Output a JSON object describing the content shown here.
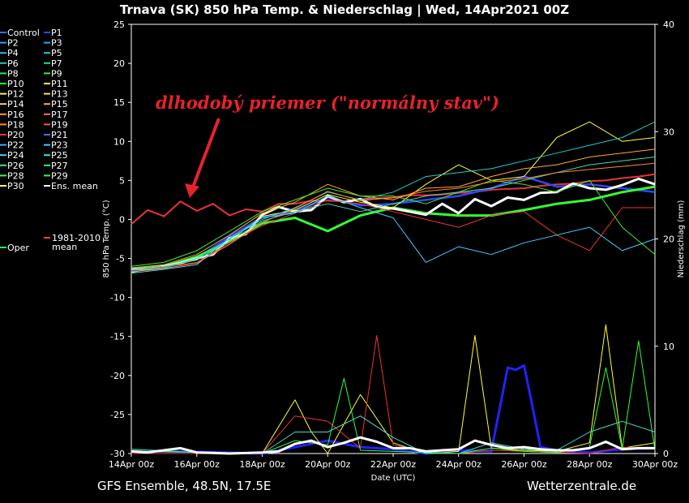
{
  "header": {
    "title": "Trnava  (SK)  850 hPa Temp. & Niederschlag | Wed, 14Apr2021 00Z"
  },
  "footer": {
    "left": "GFS Ensemble, 48.5N, 17.5E",
    "right": "Wetterzentrale.de"
  },
  "annotation": {
    "text": "dlhodobý priemer (\"normálny stav\")"
  },
  "chart_data": {
    "type": "line",
    "title": "Trnava  (SK)  850 hPa Temp. & Niederschlag | Wed, 14Apr2021 00Z",
    "xlabel": "Date (UTC)",
    "ylabel": "850 hPa Temp. (°C)",
    "y2label": "Niederschlag (mm)",
    "ylim": [
      -30,
      25
    ],
    "y2lim": [
      0,
      40
    ],
    "yticks": [
      25,
      20,
      15,
      10,
      5,
      0,
      -5,
      -10,
      -15,
      -20,
      -25,
      -30
    ],
    "y2ticks": [
      40,
      30,
      20,
      10,
      0
    ],
    "xlim": [
      0,
      16
    ],
    "xticks": [
      {
        "x": 0,
        "label": "14Apr 00z"
      },
      {
        "x": 2,
        "label": "16Apr 00z"
      },
      {
        "x": 4,
        "label": "18Apr 00z"
      },
      {
        "x": 6,
        "label": "20Apr 00z"
      },
      {
        "x": 8,
        "label": "22Apr 00z"
      },
      {
        "x": 10,
        "label": "24Apr 00z"
      },
      {
        "x": 12,
        "label": "26Apr 00z"
      },
      {
        "x": 14,
        "label": "28Apr 00z"
      },
      {
        "x": 16,
        "label": "30Apr 00z"
      }
    ],
    "grid": false,
    "legend_position": "left",
    "legend": [
      {
        "name": "Control",
        "color": "#4466ff"
      },
      {
        "name": "P1",
        "color": "#3344ff"
      },
      {
        "name": "P2",
        "color": "#3399ff"
      },
      {
        "name": "P3",
        "color": "#22aaff"
      },
      {
        "name": "P4",
        "color": "#33bbdd"
      },
      {
        "name": "P5",
        "color": "#22cccc"
      },
      {
        "name": "P6",
        "color": "#22ccaa"
      },
      {
        "name": "P7",
        "color": "#22dd88"
      },
      {
        "name": "P8",
        "color": "#22ee55"
      },
      {
        "name": "P9",
        "color": "#44ee22"
      },
      {
        "name": "P10",
        "color": "#22ff22"
      },
      {
        "name": "P11",
        "color": "#ffff33"
      },
      {
        "name": "P12",
        "color": "#ffee66"
      },
      {
        "name": "P13",
        "color": "#ffdd55"
      },
      {
        "name": "P14",
        "color": "#ffcc66"
      },
      {
        "name": "P15",
        "color": "#ffaa33"
      },
      {
        "name": "P16",
        "color": "#ff9944"
      },
      {
        "name": "P17",
        "color": "#ff7744"
      },
      {
        "name": "P18",
        "color": "#ff8833"
      },
      {
        "name": "P19",
        "color": "#ff5533"
      },
      {
        "name": "P20",
        "color": "#ee3333"
      },
      {
        "name": "P21",
        "color": "#3377ff"
      },
      {
        "name": "P22",
        "color": "#44aaff"
      },
      {
        "name": "P23",
        "color": "#44ccff"
      },
      {
        "name": "P24",
        "color": "#55ccee"
      },
      {
        "name": "P25",
        "color": "#44ddcc"
      },
      {
        "name": "P26",
        "color": "#44ddaa"
      },
      {
        "name": "P27",
        "color": "#33ee77"
      },
      {
        "name": "P28",
        "color": "#55ee55"
      },
      {
        "name": "P29",
        "color": "#33ff33"
      },
      {
        "name": "P30",
        "color": "#ffff55"
      },
      {
        "name": "Ens. mean",
        "color": "#ffffff"
      },
      {
        "name": "Oper",
        "color": "#33ff33"
      },
      {
        "name": "1981-2010 mean",
        "color": "#ff4444"
      }
    ],
    "series": [
      {
        "name": "1981-2010 mean",
        "color": "#e8333a",
        "width": 2,
        "x": [
          0,
          0.5,
          1,
          1.5,
          2,
          2.5,
          3,
          3.5,
          4,
          4.5,
          5,
          5.5,
          6,
          6.5,
          7,
          7.5,
          8,
          8.5,
          9,
          9.5,
          10,
          10.5,
          11,
          11.5,
          12,
          12.5,
          13,
          13.5,
          14,
          14.5,
          15,
          15.5,
          16
        ],
        "y": [
          -0.6,
          1.2,
          0.4,
          2.3,
          1.1,
          2.0,
          0.5,
          1.3,
          1.0,
          2.0,
          2.0,
          2.4,
          2.4,
          2.3,
          2.6,
          2.7,
          2.8,
          3.1,
          3.1,
          3.2,
          3.4,
          3.5,
          3.8,
          3.9,
          4.0,
          4.3,
          4.5,
          4.6,
          4.9,
          5.0,
          5.3,
          5.5,
          5.8
        ]
      },
      {
        "name": "Control",
        "color": "#3344ff",
        "width": 2.5,
        "x": [
          0,
          1,
          2,
          3,
          4,
          5,
          6,
          7,
          8,
          9,
          10,
          11,
          12,
          13,
          14,
          15,
          16
        ],
        "y": [
          -6.6,
          -6.2,
          -5.0,
          -2.2,
          0.3,
          1.0,
          2.8,
          1.8,
          2.0,
          2.5,
          3.0,
          4.0,
          5.5,
          4.2,
          4.5,
          4.0,
          3.5
        ]
      },
      {
        "name": "Oper",
        "color": "#33ff33",
        "width": 3,
        "x": [
          0,
          1,
          2,
          3,
          4,
          5,
          6,
          7,
          8,
          9,
          10,
          11,
          12,
          13,
          14,
          15,
          16
        ],
        "y": [
          -6.4,
          -6.0,
          -4.8,
          -2.8,
          -0.5,
          0.2,
          -1.5,
          0.5,
          1.5,
          0.8,
          0.5,
          0.5,
          1.2,
          2.0,
          2.5,
          3.5,
          4.2
        ]
      },
      {
        "name": "Ens. mean",
        "color": "#ffffff",
        "width": 3,
        "x": [
          0,
          0.5,
          1,
          1.5,
          2,
          2.5,
          3,
          3.5,
          4,
          4.5,
          5,
          5.5,
          6,
          6.5,
          7,
          7.5,
          8,
          8.5,
          9,
          9.5,
          10,
          10.5,
          11,
          11.5,
          12,
          12.5,
          13,
          13.5,
          14,
          14.5,
          15,
          15.5,
          16
        ],
        "y": [
          -6.3,
          -6.4,
          -6.0,
          -5.6,
          -5.0,
          -4.5,
          -2.4,
          -1.9,
          0.6,
          1.6,
          1.0,
          1.2,
          3.0,
          2.2,
          2.6,
          1.6,
          1.4,
          1.0,
          0.6,
          2.0,
          0.8,
          2.6,
          1.7,
          2.8,
          2.5,
          3.4,
          3.5,
          4.6,
          4.0,
          3.8,
          4.4,
          5.2,
          4.5
        ]
      },
      {
        "name": "P11",
        "color": "#ffff33",
        "width": 1,
        "x": [
          0,
          1,
          2,
          3,
          4,
          5,
          6,
          7,
          8,
          9,
          10,
          11,
          12,
          13,
          14,
          15,
          16
        ],
        "y": [
          -6.8,
          -6.0,
          -5.2,
          -2.8,
          0.4,
          1.2,
          3.2,
          2.2,
          1.5,
          4.5,
          7.0,
          5.0,
          5.5,
          10.5,
          12.5,
          10.0,
          10.5
        ]
      },
      {
        "name": "P20",
        "color": "#ee3333",
        "width": 1,
        "x": [
          0,
          1,
          2,
          3,
          4,
          5,
          6,
          7,
          8,
          9,
          10,
          11,
          12,
          13,
          14,
          15,
          16
        ],
        "y": [
          -6.5,
          -6.1,
          -5.5,
          -3.0,
          -0.8,
          0.8,
          2.5,
          2.0,
          1.0,
          0.0,
          -1.0,
          0.5,
          1.0,
          -2.0,
          -4.0,
          1.5,
          1.5
        ]
      },
      {
        "name": "P23",
        "color": "#44ccff",
        "width": 1,
        "x": [
          0,
          1,
          2,
          3,
          4,
          5,
          6,
          7,
          8,
          9,
          10,
          11,
          12,
          13,
          14,
          15,
          16
        ],
        "y": [
          -6.9,
          -6.4,
          -5.8,
          -2.4,
          0.2,
          0.8,
          3.0,
          1.5,
          0.2,
          -5.5,
          -3.5,
          -4.5,
          -3.0,
          -2.0,
          -1.0,
          -4.0,
          -2.5
        ]
      },
      {
        "name": "P15",
        "color": "#ffaa33",
        "width": 1,
        "x": [
          0,
          1,
          2,
          3,
          4,
          5,
          6,
          7,
          8,
          9,
          10,
          11,
          12,
          13,
          14,
          15,
          16
        ],
        "y": [
          -6.2,
          -5.8,
          -4.5,
          -2.0,
          0.8,
          2.2,
          4.5,
          3.0,
          2.5,
          4.0,
          4.2,
          5.5,
          6.5,
          7.0,
          8.0,
          8.5,
          9.0
        ]
      },
      {
        "name": "P5",
        "color": "#22cccc",
        "width": 1,
        "x": [
          0,
          1,
          2,
          3,
          4,
          5,
          6,
          7,
          8,
          9,
          10,
          11,
          12,
          13,
          14,
          15,
          16
        ],
        "y": [
          -6.5,
          -6.2,
          -5.0,
          -2.5,
          0.0,
          1.5,
          3.5,
          2.5,
          3.5,
          5.5,
          6.0,
          6.5,
          7.5,
          8.5,
          9.5,
          10.5,
          12.5
        ]
      },
      {
        "name": "P9",
        "color": "#44ee22",
        "width": 1,
        "x": [
          0,
          1,
          2,
          3,
          4,
          5,
          6,
          7,
          8,
          9,
          10,
          11,
          12,
          13,
          14,
          15,
          16
        ],
        "y": [
          -6.0,
          -5.5,
          -4.0,
          -1.5,
          1.0,
          2.5,
          4.0,
          3.0,
          3.0,
          2.0,
          3.5,
          5.0,
          4.5,
          3.5,
          5.0,
          -1.0,
          -4.5
        ]
      },
      {
        "name": "P26",
        "color": "#44ddaa",
        "width": 1,
        "x": [
          0,
          1,
          2,
          3,
          4,
          5,
          6,
          7,
          8,
          9,
          10,
          11,
          12,
          13,
          14,
          15,
          16
        ],
        "y": [
          -6.3,
          -6.0,
          -5.2,
          -2.8,
          -0.2,
          1.0,
          2.0,
          1.0,
          2.0,
          3.0,
          3.5,
          4.0,
          5.0,
          6.0,
          7.0,
          7.5,
          8.0
        ]
      },
      {
        "name": "P18",
        "color": "#ff8833",
        "width": 1,
        "x": [
          0,
          1,
          2,
          3,
          4,
          5,
          6,
          7,
          8,
          9,
          10,
          11,
          12,
          13,
          14,
          15,
          16
        ],
        "y": [
          -6.7,
          -6.3,
          -5.6,
          -3.2,
          -0.4,
          1.4,
          3.6,
          2.4,
          2.8,
          3.6,
          4.0,
          4.8,
          5.2,
          6.0,
          6.4,
          6.8,
          7.2
        ]
      }
    ],
    "precipitation": {
      "axis": "y2",
      "series": [
        {
          "name": "P1 precip",
          "color": "#2222ff",
          "width": 3,
          "x": [
            0,
            4,
            5,
            6,
            7,
            8,
            9,
            10,
            11,
            11.5,
            11.75,
            12,
            12.25,
            12.5,
            13,
            14,
            15,
            16
          ],
          "y": [
            0.3,
            0,
            0.6,
            1.2,
            0.6,
            0.4,
            0,
            0.3,
            0.2,
            8.0,
            7.8,
            8.2,
            4.5,
            0.6,
            0.3,
            0.1,
            0.4,
            0.5
          ]
        },
        {
          "name": "P11 precip",
          "color": "#ffff33",
          "width": 1,
          "x": [
            0,
            4,
            5,
            5.5,
            6,
            7,
            8,
            9,
            10,
            10.5,
            11,
            12,
            13,
            14,
            14.5,
            15,
            16
          ],
          "y": [
            0,
            0,
            5.0,
            2.0,
            0,
            5.5,
            1.0,
            0,
            0.2,
            11.0,
            0.5,
            0.3,
            0.2,
            1.0,
            12.0,
            0.5,
            1.0
          ]
        },
        {
          "name": "P20 precip",
          "color": "#ee3333",
          "width": 1,
          "x": [
            0,
            4,
            5,
            6,
            7,
            7.5,
            8,
            9,
            10,
            11,
            12,
            13,
            14,
            15,
            16
          ],
          "y": [
            0,
            0,
            3.5,
            3.0,
            0.5,
            11.0,
            0.8,
            0.2,
            0,
            0.3,
            0.2,
            0.1,
            0,
            0.6,
            0.4
          ]
        },
        {
          "name": "P29 precip",
          "color": "#33ff33",
          "width": 1,
          "x": [
            0,
            2,
            4,
            5,
            6,
            6.5,
            7,
            8,
            9,
            10,
            11,
            12,
            13,
            14,
            14.5,
            15,
            15.5,
            16
          ],
          "y": [
            0.4,
            0.1,
            0,
            1.2,
            0.8,
            7.0,
            0.3,
            0.2,
            0.1,
            0,
            0.5,
            0.2,
            0.1,
            0.6,
            8.0,
            0.4,
            10.5,
            0.3
          ]
        },
        {
          "name": "P25 precip",
          "color": "#44ddcc",
          "width": 1,
          "x": [
            0,
            4,
            5,
            6,
            7,
            8,
            9,
            10,
            11,
            12,
            13,
            14,
            15,
            16
          ],
          "y": [
            0.2,
            0,
            2.0,
            2.0,
            3.5,
            1.5,
            0,
            0,
            1.0,
            0.4,
            0.3,
            2.0,
            3.0,
            2.0
          ]
        },
        {
          "name": "Ens. mean precip",
          "color": "#ffffff",
          "width": 3,
          "x": [
            0,
            0.5,
            1,
            1.5,
            2,
            3,
            4,
            4.5,
            5,
            5.5,
            6,
            6.5,
            7,
            7.5,
            8,
            8.5,
            9,
            9.5,
            10,
            10.5,
            11,
            11.5,
            12,
            12.5,
            13,
            13.5,
            14,
            14.5,
            15,
            15.5,
            16
          ],
          "y": [
            0.2,
            0.1,
            0.3,
            0.5,
            0.1,
            0,
            0.1,
            0.2,
            0.9,
            1.2,
            0.6,
            1.0,
            1.5,
            1.1,
            0.5,
            0.5,
            0.2,
            0.3,
            0.4,
            1.2,
            0.8,
            0.5,
            0.6,
            0.4,
            0.3,
            0.3,
            0.5,
            1.1,
            0.4,
            0.5,
            0.5
          ]
        }
      ]
    }
  }
}
